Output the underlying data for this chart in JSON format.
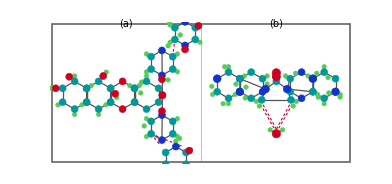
{
  "figsize": [
    3.92,
    1.84
  ],
  "dpi": 100,
  "panel_a_label": "(a)",
  "panel_b_label": "(b)",
  "teal": "#009999",
  "red": "#cc0022",
  "green": "#55cc55",
  "blue": "#1133cc",
  "dark_blue": "#0000aa",
  "bond_color": "#555555",
  "hbond_color": "#cc0033",
  "bg": "white"
}
